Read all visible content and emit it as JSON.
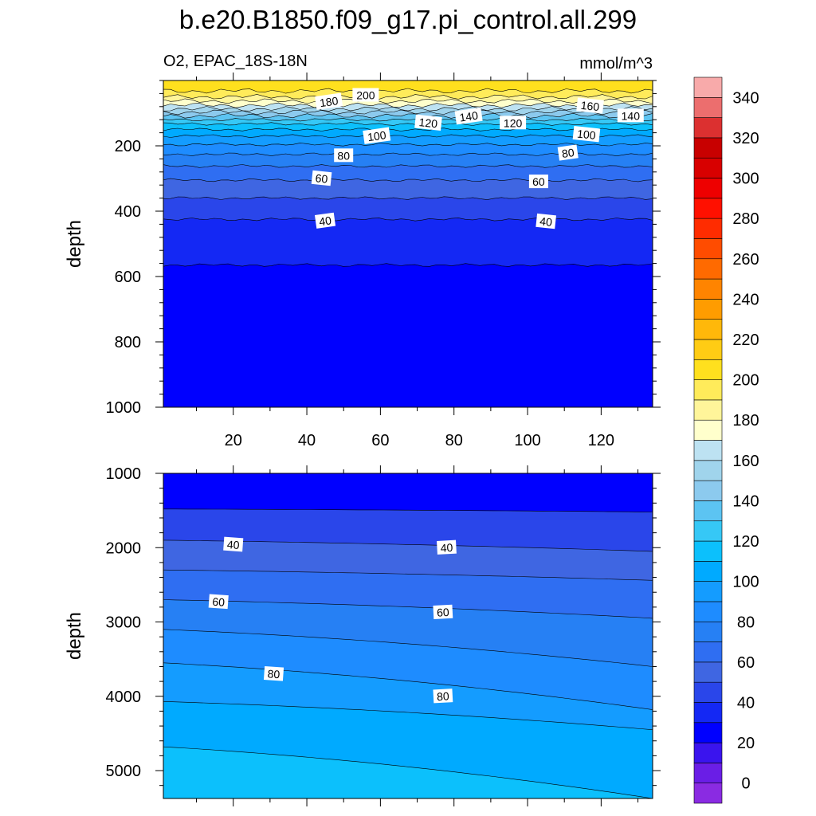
{
  "figure": {
    "title": "b.e20.B1850.f09_g17.pi_control.all.299",
    "left_string": "O2, EPAC_18S-18N",
    "right_string": "mmol/m^3"
  },
  "chart_data": [
    {
      "type": "contour",
      "panel": "upper",
      "xlabel": "",
      "ylabel": "depth",
      "xlim": [
        1,
        134
      ],
      "ylim": [
        1000,
        0
      ],
      "y_inverted": true,
      "xticks": [
        20,
        40,
        60,
        80,
        100,
        120
      ],
      "yticks": [
        200,
        400,
        600,
        800,
        1000
      ],
      "contour_levels": [
        0,
        10,
        20,
        30,
        40,
        50,
        60,
        70,
        80,
        90,
        100,
        110,
        120,
        130,
        140,
        150,
        160,
        170,
        180,
        190,
        200
      ],
      "isoline_depths": [
        {
          "level": 30,
          "depth": 565
        },
        {
          "level": 40,
          "depth": 425
        },
        {
          "level": 50,
          "depth": 360
        },
        {
          "level": 60,
          "depth": 305
        },
        {
          "level": 70,
          "depth": 262
        },
        {
          "level": 80,
          "depth": 226
        },
        {
          "level": 90,
          "depth": 196
        },
        {
          "level": 100,
          "depth": 170
        },
        {
          "level": 110,
          "depth": 150
        },
        {
          "level": 120,
          "depth": 133
        },
        {
          "level": 130,
          "depth": 120
        },
        {
          "level": 140,
          "depth": 108
        },
        {
          "level": 150,
          "depth": 97
        },
        {
          "level": 160,
          "depth": 87
        },
        {
          "level": 170,
          "depth": 76
        },
        {
          "level": 180,
          "depth": 63
        },
        {
          "level": 190,
          "depth": 50
        },
        {
          "level": 200,
          "depth": 32
        }
      ],
      "line_labels": [
        {
          "text": "200",
          "x": 56,
          "depth": 45
        },
        {
          "text": "180",
          "x": 46,
          "depth": 65
        },
        {
          "text": "160",
          "x": 117,
          "depth": 78
        },
        {
          "text": "140",
          "x": 128,
          "depth": 108
        },
        {
          "text": "140",
          "x": 84,
          "depth": 110
        },
        {
          "text": "120",
          "x": 73,
          "depth": 130
        },
        {
          "text": "120",
          "x": 96,
          "depth": 130
        },
        {
          "text": "100",
          "x": 59,
          "depth": 170
        },
        {
          "text": "100",
          "x": 116,
          "depth": 165
        },
        {
          "text": "80",
          "x": 50,
          "depth": 230
        },
        {
          "text": "80",
          "x": 111,
          "depth": 222
        },
        {
          "text": "60",
          "x": 44,
          "depth": 300
        },
        {
          "text": "60",
          "x": 103,
          "depth": 310
        },
        {
          "text": "40",
          "x": 45,
          "depth": 430
        },
        {
          "text": "40",
          "x": 105,
          "depth": 432
        }
      ]
    },
    {
      "type": "contour",
      "panel": "lower",
      "xlabel": "",
      "ylabel": "depth",
      "xlim": [
        1,
        134
      ],
      "ylim": [
        5375,
        1000
      ],
      "y_inverted": true,
      "yticks": [
        1000,
        2000,
        3000,
        4000,
        5000
      ],
      "isolines": [
        {
          "level": 30,
          "depths_at_x": [
            [
              1,
              1480
            ],
            [
              134,
              1520
            ]
          ]
        },
        {
          "level": 40,
          "depths_at_x": [
            [
              1,
              1900
            ],
            [
              134,
              2050
            ]
          ]
        },
        {
          "level": 50,
          "depths_at_x": [
            [
              1,
              2300
            ],
            [
              134,
              2440
            ]
          ]
        },
        {
          "level": 60,
          "depths_at_x": [
            [
              1,
              2700
            ],
            [
              134,
              2950
            ]
          ]
        },
        {
          "level": 70,
          "depths_at_x": [
            [
              1,
              3100
            ],
            [
              134,
              3600
            ]
          ]
        },
        {
          "level": 80,
          "depths_at_x": [
            [
              1,
              3550
            ],
            [
              134,
              4180
            ]
          ]
        },
        {
          "level": 90,
          "depths_at_x": [
            [
              1,
              4070
            ],
            [
              134,
              4450
            ]
          ]
        },
        {
          "level": 100,
          "depths_at_x": [
            [
              1,
              4680
            ],
            [
              134,
              5375
            ]
          ]
        }
      ],
      "line_labels": [
        {
          "text": "40",
          "x": 20,
          "depth": 1960
        },
        {
          "text": "40",
          "x": 78,
          "depth": 2000
        },
        {
          "text": "60",
          "x": 16,
          "depth": 2730
        },
        {
          "text": "60",
          "x": 77,
          "depth": 2870
        },
        {
          "text": "80",
          "x": 31,
          "depth": 3700
        },
        {
          "text": "80",
          "x": 77,
          "depth": 4000
        }
      ]
    }
  ],
  "colorbar": {
    "tick_labels": [
      "0",
      "20",
      "40",
      "60",
      "80",
      "100",
      "120",
      "140",
      "160",
      "180",
      "200",
      "220",
      "240",
      "260",
      "280",
      "300",
      "320",
      "340"
    ],
    "colors": [
      "#8a2be2",
      "#6a1ee6",
      "#3a14ee",
      "#0000ff",
      "#1428f4",
      "#2a46ea",
      "#3f66e2",
      "#2f6ef2",
      "#2680f4",
      "#1e8cff",
      "#149cff",
      "#00aaff",
      "#0cc0fc",
      "#36c8f6",
      "#5cc4f2",
      "#8ccaee",
      "#a0d4ec",
      "#bde2f2",
      "#ffffcc",
      "#fff59a",
      "#ffeb5a",
      "#ffe01e",
      "#ffcc14",
      "#ffb80a",
      "#ff9c00",
      "#ff8400",
      "#ff6a00",
      "#ff4c00",
      "#ff2c00",
      "#ff1000",
      "#ee0000",
      "#d80000",
      "#c80000",
      "#dc3030",
      "#ec6e6e",
      "#f8aaaa"
    ]
  }
}
